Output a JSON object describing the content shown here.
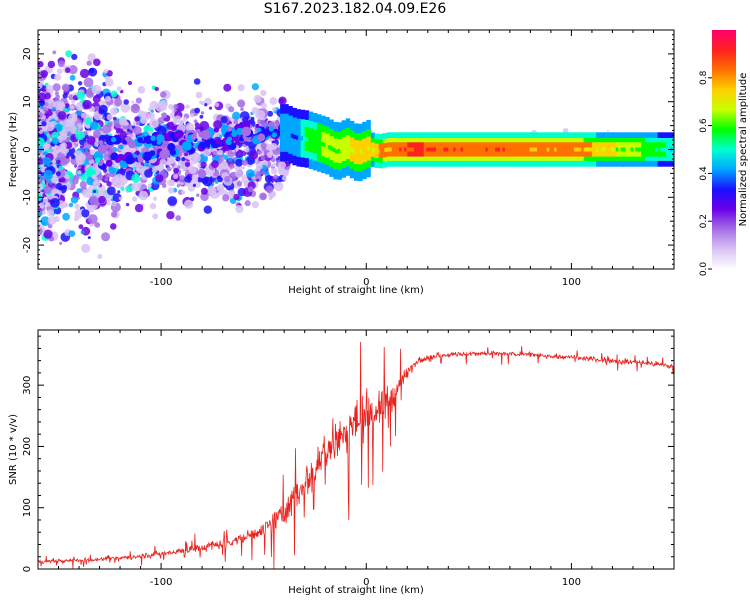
{
  "page": {
    "title": "S167.2023.182.04.09.E26"
  },
  "colors": {
    "snr_line": "#e8221e",
    "colormap": [
      "#ffffff",
      "#d9c2f4",
      "#a66ee6",
      "#6a00e8",
      "#1a10ff",
      "#00a6ff",
      "#00ffd0",
      "#00ff00",
      "#c8ff00",
      "#ffd000",
      "#ff7000",
      "#ff2020",
      "#ff006e"
    ]
  },
  "chart_data": [
    {
      "type": "heatmap",
      "title": "S167.2023.182.04.09.E26",
      "xlabel": "Height of straight line (km)",
      "ylabel": "Frequency (Hz)",
      "xlim": [
        -160,
        150
      ],
      "ylim": [
        -25,
        25
      ],
      "xticks": [
        "-100",
        "0",
        "100"
      ],
      "yticks": [
        "-20",
        "-10",
        "0",
        "10",
        "20"
      ],
      "colorbar": {
        "label": "Normalized spectral amplitude",
        "range": [
          0,
          1
        ],
        "ticks": [
          "0.0",
          "0.2",
          "0.4",
          "0.6",
          "0.8"
        ]
      },
      "ridge": {
        "x": [
          -40,
          -35,
          -30,
          -25,
          -20,
          -15,
          -10,
          -5,
          0,
          5,
          10,
          20,
          50,
          100,
          150
        ],
        "y": [
          3.5,
          2.5,
          2.2,
          1.5,
          0.8,
          -0.5,
          0.5,
          -0.8,
          0.2,
          -0.4,
          0,
          0,
          0,
          0,
          0
        ],
        "amplitude": [
          0.45,
          0.4,
          0.55,
          0.6,
          0.65,
          0.65,
          0.7,
          0.75,
          0.75,
          0.8,
          0.85,
          0.95,
          0.9,
          0.85,
          0.5
        ]
      }
    },
    {
      "type": "line",
      "xlabel": "Height of straight line (km)",
      "ylabel": "SNR (10 * v/v)",
      "xlim": [
        -160,
        150
      ],
      "ylim": [
        0,
        390
      ],
      "xticks": [
        "-100",
        "0",
        "100"
      ],
      "yticks": [
        "0",
        "100",
        "200",
        "300"
      ],
      "series": [
        {
          "x": [
            -160,
            -140,
            -120,
            -100,
            -80,
            -60,
            -50,
            -40,
            -35,
            -30,
            -25,
            -20,
            -15,
            -10,
            -5,
            0,
            5,
            10,
            15,
            20,
            25,
            30,
            40,
            60,
            80,
            100,
            120,
            140,
            150
          ],
          "values": [
            12,
            14,
            18,
            25,
            35,
            50,
            65,
            90,
            120,
            140,
            170,
            190,
            210,
            225,
            240,
            245,
            255,
            275,
            290,
            320,
            340,
            345,
            350,
            352,
            350,
            345,
            340,
            335,
            330
          ],
          "noise_amplitude": [
            8,
            8,
            10,
            15,
            20,
            30,
            40,
            55,
            70,
            80,
            95,
            100,
            100,
            100,
            100,
            100,
            95,
            85,
            60,
            30,
            15,
            12,
            12,
            12,
            12,
            12,
            12,
            12,
            12
          ]
        }
      ]
    }
  ]
}
